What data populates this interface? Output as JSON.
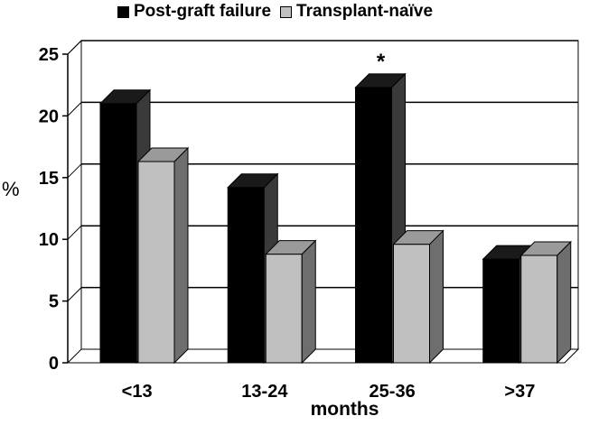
{
  "chart_data": {
    "type": "bar",
    "categories": [
      "<13",
      "13-24",
      "25-36",
      ">37"
    ],
    "series": [
      {
        "name": "Post-graft failure",
        "values": [
          21,
          14.2,
          22.3,
          8.4
        ],
        "color": "#000000"
      },
      {
        "name": "Transplant-naïve",
        "values": [
          16.3,
          8.8,
          9.6,
          8.7
        ],
        "color": "#c0c0c0"
      }
    ],
    "xlabel": "months",
    "ylabel": "%",
    "ylim": [
      0,
      25
    ],
    "yticks": [
      0,
      5,
      10,
      15,
      20,
      25
    ],
    "grid": true,
    "legend_position": "top",
    "annotations": [
      {
        "category": "25-36",
        "series": "Post-graft failure",
        "text": "*"
      }
    ]
  }
}
